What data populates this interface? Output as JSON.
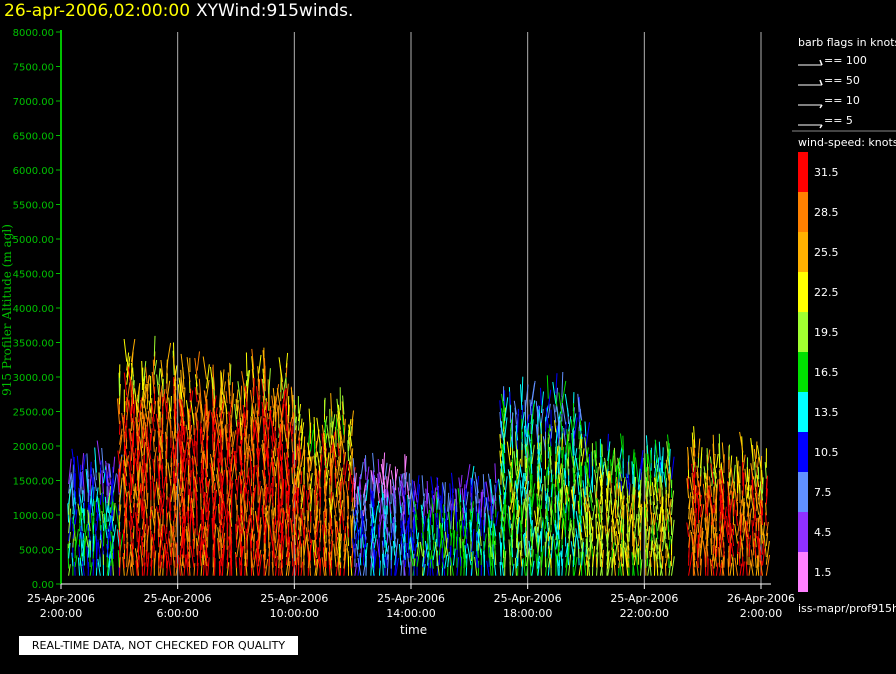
{
  "header": {
    "datetime": "26-apr-2006,02:00:00",
    "product": "XYWind:915winds."
  },
  "legend": {
    "barb_title": "barb flags in knots",
    "barbs": [
      "== 100",
      "== 50",
      "== 10",
      "== 5"
    ],
    "speed_title": "wind-speed: knots",
    "speed_colors": [
      {
        "label": "31.5",
        "color": "#ff0000"
      },
      {
        "label": "28.5",
        "color": "#ff8000"
      },
      {
        "label": "25.5",
        "color": "#ffb000"
      },
      {
        "label": "22.5",
        "color": "#ffff00"
      },
      {
        "label": "19.5",
        "color": "#a0ff30"
      },
      {
        "label": "16.5",
        "color": "#00e000"
      },
      {
        "label": "13.5",
        "color": "#00ffff"
      },
      {
        "label": "10.5",
        "color": "#0000ff"
      },
      {
        "label": "7.5",
        "color": "#6090ff"
      },
      {
        "label": "4.5",
        "color": "#9030ff"
      },
      {
        "label": "1.5",
        "color": "#ff80ff"
      }
    ],
    "source": "iss-mapr/prof915h"
  },
  "footer": {
    "quality_note": "REAL-TIME DATA, NOT CHECKED FOR QUALITY"
  },
  "chart_data": {
    "type": "scatter",
    "xlabel": "time",
    "ylabel": "915 Profiler Altitude (m agl)",
    "ylim": [
      0,
      8000
    ],
    "y_ticks": [
      "0.00",
      "500.00",
      "1000.00",
      "1500.00",
      "2000.00",
      "2500.00",
      "3000.00",
      "3500.00",
      "4000.00",
      "4500.00",
      "5000.00",
      "5500.00",
      "6000.00",
      "6500.00",
      "7000.00",
      "7500.00",
      "8000.00"
    ],
    "x_ticks": [
      {
        "date": "25-Apr-2006",
        "time": "2:00:00"
      },
      {
        "date": "25-Apr-2006",
        "time": "6:00:00"
      },
      {
        "date": "25-Apr-2006",
        "time": "10:00:00"
      },
      {
        "date": "25-Apr-2006",
        "time": "14:00:00"
      },
      {
        "date": "25-Apr-2006",
        "time": "18:00:00"
      },
      {
        "date": "25-Apr-2006",
        "time": "22:00:00"
      },
      {
        "date": "26-Apr-2006",
        "time": "2:00:00"
      }
    ],
    "grid": "vertical",
    "legend_position": "right",
    "regions": [
      {
        "start": "25-Apr-2006 2:15",
        "end": "25-Apr-2006 4:00",
        "top": 1800,
        "speed": 14
      },
      {
        "start": "25-Apr-2006 4:00",
        "end": "25-Apr-2006 6:00",
        "top": 3400,
        "speed": 30
      },
      {
        "start": "25-Apr-2006 6:00",
        "end": "25-Apr-2006 10:00",
        "top": 3200,
        "speed": 31
      },
      {
        "start": "25-Apr-2006 10:00",
        "end": "25-Apr-2006 12:00",
        "top": 2600,
        "speed": 28
      },
      {
        "start": "25-Apr-2006 12:00",
        "end": "25-Apr-2006 14:00",
        "top": 1700,
        "speed": 10
      },
      {
        "start": "25-Apr-2006 14:00",
        "end": "25-Apr-2006 17:00",
        "top": 1500,
        "speed": 14
      },
      {
        "start": "25-Apr-2006 17:00",
        "end": "25-Apr-2006 20:00",
        "top": 2800,
        "speed": 17
      },
      {
        "start": "25-Apr-2006 20:00",
        "end": "25-Apr-2006 23:00",
        "top": 2000,
        "speed": 22
      },
      {
        "start": "25-Apr-2006 23:30",
        "end": "26-Apr-2006 2:15",
        "top": 2000,
        "speed": 29
      }
    ]
  }
}
